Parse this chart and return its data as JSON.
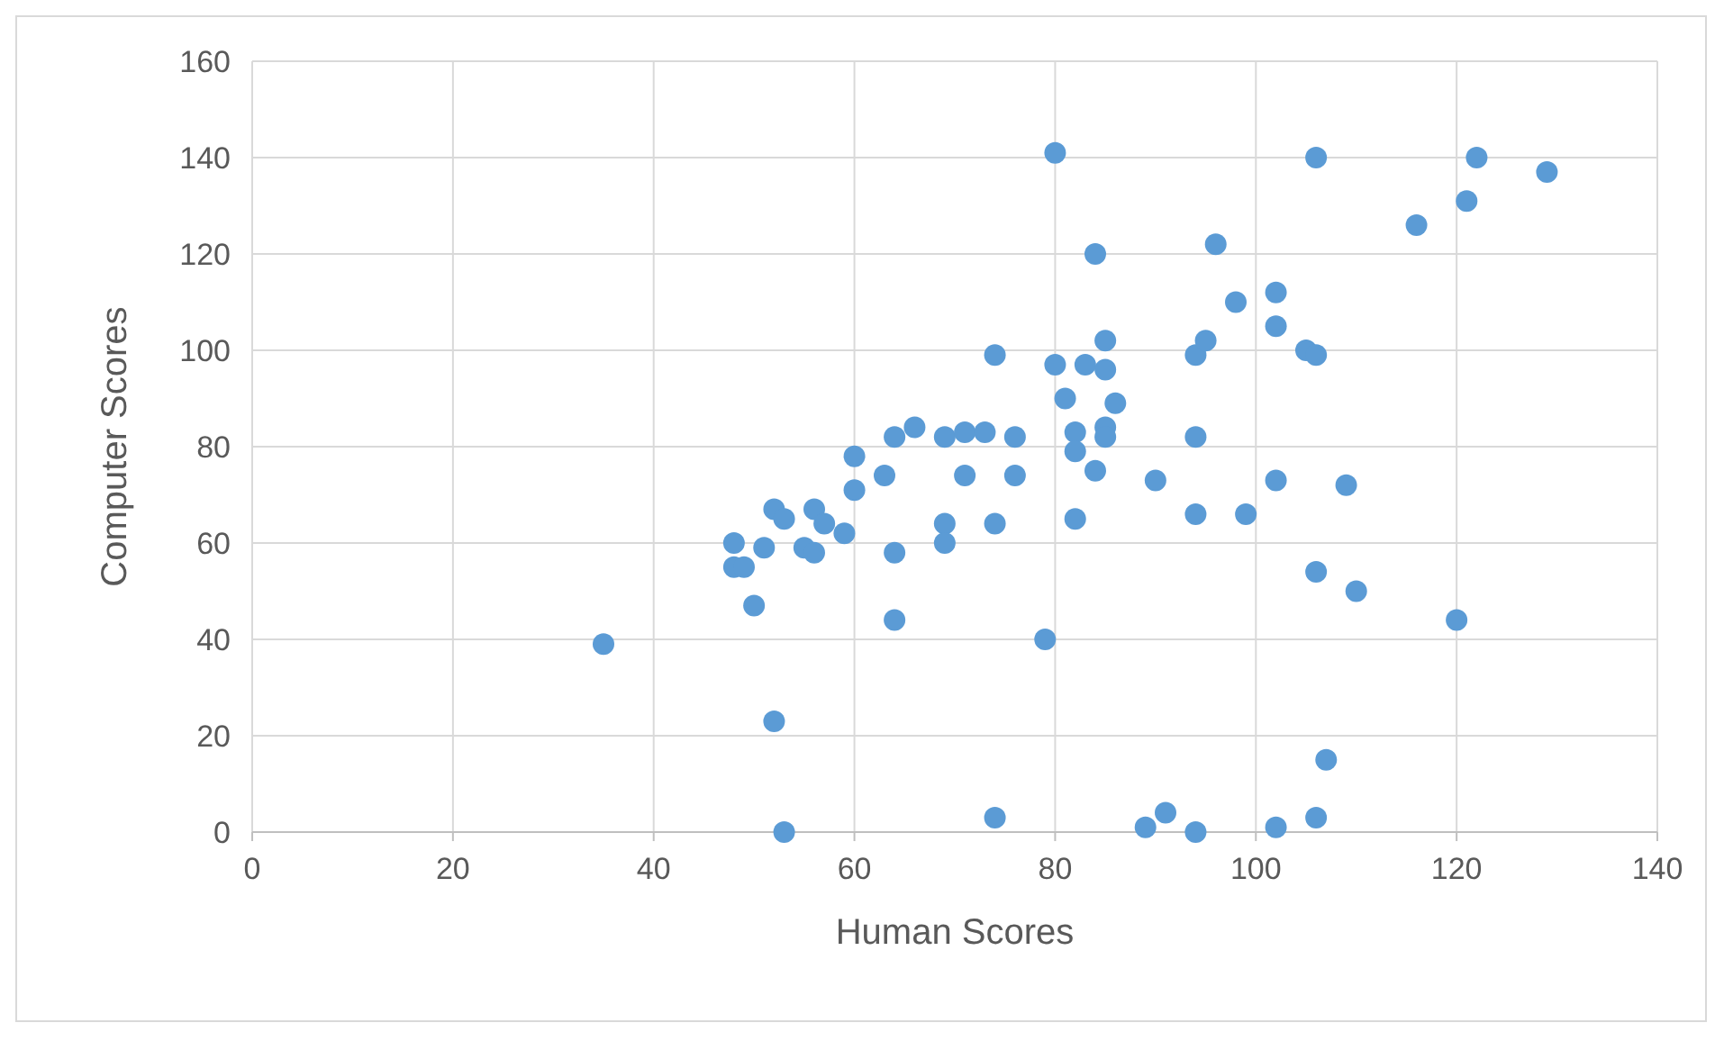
{
  "chart_data": {
    "type": "scatter",
    "xlabel": "Human Scores",
    "ylabel": "Computer Scores",
    "xlim": [
      0,
      140
    ],
    "ylim": [
      0,
      160
    ],
    "xticks": [
      0,
      20,
      40,
      60,
      80,
      100,
      120,
      140
    ],
    "yticks": [
      0,
      20,
      40,
      60,
      80,
      100,
      120,
      140,
      160
    ],
    "grid": true,
    "marker": "circle",
    "series": [
      {
        "color": "#5b9bd5",
        "x": [
          35,
          48,
          48,
          49,
          50,
          51,
          52,
          53,
          52,
          53,
          55,
          56,
          56,
          57,
          59,
          60,
          60,
          63,
          64,
          64,
          64,
          66,
          69,
          69,
          69,
          71,
          71,
          73,
          74,
          74,
          74,
          76,
          76,
          79,
          80,
          80,
          81,
          82,
          82,
          82,
          83,
          84,
          84,
          85,
          85,
          85,
          85,
          86,
          89,
          90,
          91,
          94,
          94,
          94,
          94,
          95,
          96,
          98,
          99,
          102,
          102,
          102,
          102,
          105,
          106,
          106,
          106,
          106,
          107,
          109,
          110,
          116,
          120,
          121,
          122,
          129
        ],
        "values": [
          39,
          60,
          55,
          55,
          47,
          59,
          67,
          65,
          23,
          0,
          59,
          67,
          58,
          64,
          62,
          78,
          71,
          74,
          82,
          58,
          44,
          84,
          82,
          64,
          60,
          83,
          74,
          83,
          99,
          64,
          3,
          82,
          74,
          40,
          141,
          97,
          90,
          83,
          79,
          65,
          97,
          120,
          75,
          102,
          96,
          84,
          82,
          89,
          1,
          73,
          4,
          99,
          82,
          66,
          0,
          102,
          122,
          110,
          66,
          112,
          105,
          73,
          1,
          100,
          140,
          99,
          54,
          3,
          15,
          72,
          50,
          126,
          44,
          131,
          140,
          137
        ]
      }
    ]
  }
}
